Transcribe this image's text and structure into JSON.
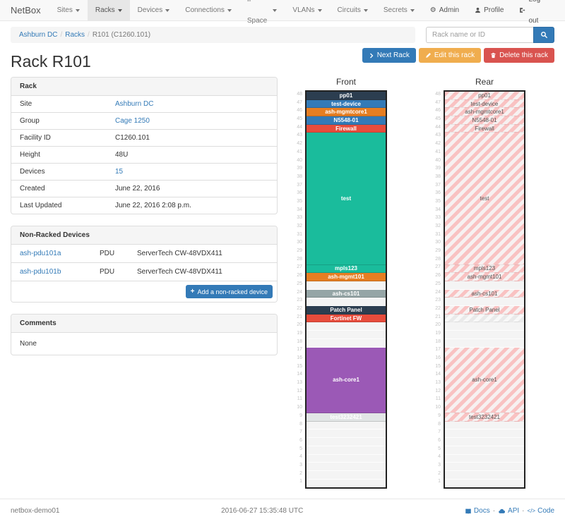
{
  "navbar": {
    "brand": "NetBox",
    "items": [
      {
        "label": "Sites",
        "active": false
      },
      {
        "label": "Racks",
        "active": true
      },
      {
        "label": "Devices",
        "active": false
      },
      {
        "label": "Connections",
        "active": false
      },
      {
        "label": "IP Space",
        "active": false
      },
      {
        "label": "VLANs",
        "active": false
      },
      {
        "label": "Circuits",
        "active": false
      },
      {
        "label": "Secrets",
        "active": false
      }
    ],
    "right": [
      {
        "label": "Admin",
        "icon": "gear-icon"
      },
      {
        "label": "Profile",
        "icon": "user-icon"
      },
      {
        "label": "Log out",
        "icon": "logout-icon"
      }
    ]
  },
  "breadcrumb": {
    "items": [
      {
        "label": "Ashburn DC",
        "link": true
      },
      {
        "label": "Racks",
        "link": true
      },
      {
        "label": "R101 (C1260.101)",
        "link": false
      }
    ]
  },
  "search": {
    "placeholder": "Rack name or ID",
    "icon": "search-icon"
  },
  "page": {
    "title": "Rack R101"
  },
  "actions": [
    {
      "label": "Next Rack",
      "color": "#337ab7",
      "icon": "chevron-right-icon"
    },
    {
      "label": "Edit this rack",
      "color": "#f0ad4e",
      "icon": "pencil-icon"
    },
    {
      "label": "Delete this rack",
      "color": "#d9534f",
      "icon": "trash-icon"
    }
  ],
  "rack_panel": {
    "title": "Rack",
    "rows": [
      {
        "label": "Site",
        "value": "Ashburn DC",
        "link": true
      },
      {
        "label": "Group",
        "value": "Cage 1250",
        "link": true
      },
      {
        "label": "Facility ID",
        "value": "C1260.101",
        "link": false
      },
      {
        "label": "Height",
        "value": "48U",
        "link": false
      },
      {
        "label": "Devices",
        "value": "15",
        "link": true
      },
      {
        "label": "Created",
        "value": "June 22, 2016",
        "link": false
      },
      {
        "label": "Last Updated",
        "value": "June 22, 2016 2:08 p.m.",
        "link": false
      }
    ]
  },
  "non_racked": {
    "title": "Non-Racked Devices",
    "rows": [
      {
        "name": "ash-pdu101a",
        "type": "PDU",
        "model": "ServerTech CW-48VDX411"
      },
      {
        "name": "ash-pdu101b",
        "type": "PDU",
        "model": "ServerTech CW-48VDX411"
      }
    ],
    "add_button": {
      "label": "Add a non-racked device",
      "icon": "plus-icon",
      "color": "#337ab7"
    }
  },
  "comments": {
    "title": "Comments",
    "body": "None"
  },
  "elevations": {
    "front": {
      "title": "Front",
      "u_count": 48,
      "units": [
        {
          "u": 48,
          "h": 1,
          "label": "pp01",
          "bg": "#2c3e50"
        },
        {
          "u": 47,
          "h": 1,
          "label": "test-device",
          "bg": "#337ab7"
        },
        {
          "u": 46,
          "h": 1,
          "label": "ash-mgmtcore1",
          "bg": "#e67e22"
        },
        {
          "u": 45,
          "h": 1,
          "label": "N5548-01",
          "bg": "#337ab7"
        },
        {
          "u": 44,
          "h": 1,
          "label": "Firewall",
          "bg": "#e74c3c"
        },
        {
          "u": 43,
          "h": 16,
          "label": "test",
          "bg": "#1abc9c"
        },
        {
          "u": 27,
          "h": 1,
          "label": "mpls123",
          "bg": "#1abc9c"
        },
        {
          "u": 26,
          "h": 1,
          "label": "ash-mgmt101",
          "bg": "#e67e22"
        },
        {
          "u": 25,
          "h": 1,
          "empty": true
        },
        {
          "u": 24,
          "h": 1,
          "label": "ash-cs101",
          "bg": "#95a5a6"
        },
        {
          "u": 23,
          "h": 1,
          "empty": true
        },
        {
          "u": 22,
          "h": 1,
          "label": "Patch Panel",
          "bg": "#2c3e50"
        },
        {
          "u": 21,
          "h": 1,
          "label": "Fortinet FW",
          "bg": "#e74c3c"
        },
        {
          "u": 20,
          "h": 1,
          "empty": true
        },
        {
          "u": 19,
          "h": 1,
          "empty": true
        },
        {
          "u": 18,
          "h": 1,
          "empty": true
        },
        {
          "u": 17,
          "h": 8,
          "label": "ash-core1",
          "bg": "#9b59b6"
        },
        {
          "u": 9,
          "h": 1,
          "label": "test3232421",
          "bg": "#e2e6e6",
          "fg": "#ffffff"
        },
        {
          "u": 8,
          "h": 1,
          "empty": true
        },
        {
          "u": 7,
          "h": 1,
          "empty": true
        },
        {
          "u": 6,
          "h": 1,
          "empty": true
        },
        {
          "u": 5,
          "h": 1,
          "empty": true
        },
        {
          "u": 4,
          "h": 1,
          "empty": true
        },
        {
          "u": 3,
          "h": 1,
          "empty": true
        },
        {
          "u": 2,
          "h": 1,
          "empty": true
        },
        {
          "u": 1,
          "h": 1,
          "empty": true
        }
      ]
    },
    "rear": {
      "title": "Rear",
      "u_count": 48,
      "units": [
        {
          "u": 48,
          "h": 1,
          "label": "pp01",
          "pattern": "pink"
        },
        {
          "u": 47,
          "h": 1,
          "label": "test-device",
          "pattern": "pink"
        },
        {
          "u": 46,
          "h": 1,
          "label": "ash-mgmtcore1",
          "pattern": "pink"
        },
        {
          "u": 45,
          "h": 1,
          "label": "N5548-01",
          "pattern": "pink"
        },
        {
          "u": 44,
          "h": 1,
          "label": "Firewall",
          "pattern": "pink"
        },
        {
          "u": 43,
          "h": 16,
          "label": "test",
          "pattern": "pink"
        },
        {
          "u": 27,
          "h": 1,
          "label": "mpls123",
          "pattern": "pink"
        },
        {
          "u": 26,
          "h": 1,
          "label": "ash-mgmt101",
          "pattern": "pink"
        },
        {
          "u": 25,
          "h": 1,
          "empty": true
        },
        {
          "u": 24,
          "h": 1,
          "label": "ash-cs101",
          "pattern": "pink"
        },
        {
          "u": 23,
          "h": 1,
          "empty": true
        },
        {
          "u": 22,
          "h": 1,
          "label": "Patch Panel",
          "pattern": "pink"
        },
        {
          "u": 21,
          "h": 1,
          "label": "",
          "pattern": "gray"
        },
        {
          "u": 20,
          "h": 1,
          "empty": true
        },
        {
          "u": 19,
          "h": 1,
          "empty": true
        },
        {
          "u": 18,
          "h": 1,
          "empty": true
        },
        {
          "u": 17,
          "h": 8,
          "label": "ash-core1",
          "pattern": "pink"
        },
        {
          "u": 9,
          "h": 1,
          "label": "test3232421",
          "pattern": "pink"
        },
        {
          "u": 8,
          "h": 1,
          "empty": true
        },
        {
          "u": 7,
          "h": 1,
          "empty": true
        },
        {
          "u": 6,
          "h": 1,
          "empty": true
        },
        {
          "u": 5,
          "h": 1,
          "empty": true
        },
        {
          "u": 4,
          "h": 1,
          "empty": true
        },
        {
          "u": 3,
          "h": 1,
          "empty": true
        },
        {
          "u": 2,
          "h": 1,
          "empty": true
        },
        {
          "u": 1,
          "h": 1,
          "empty": true
        }
      ]
    }
  },
  "footer": {
    "hostname": "netbox-demo01",
    "timestamp": "2016-06-27 15:35:48 UTC",
    "links": [
      {
        "label": "Docs",
        "icon": "book-icon"
      },
      {
        "label": "API",
        "icon": "cloud-icon"
      },
      {
        "label": "Code",
        "icon": "code-icon"
      }
    ]
  }
}
